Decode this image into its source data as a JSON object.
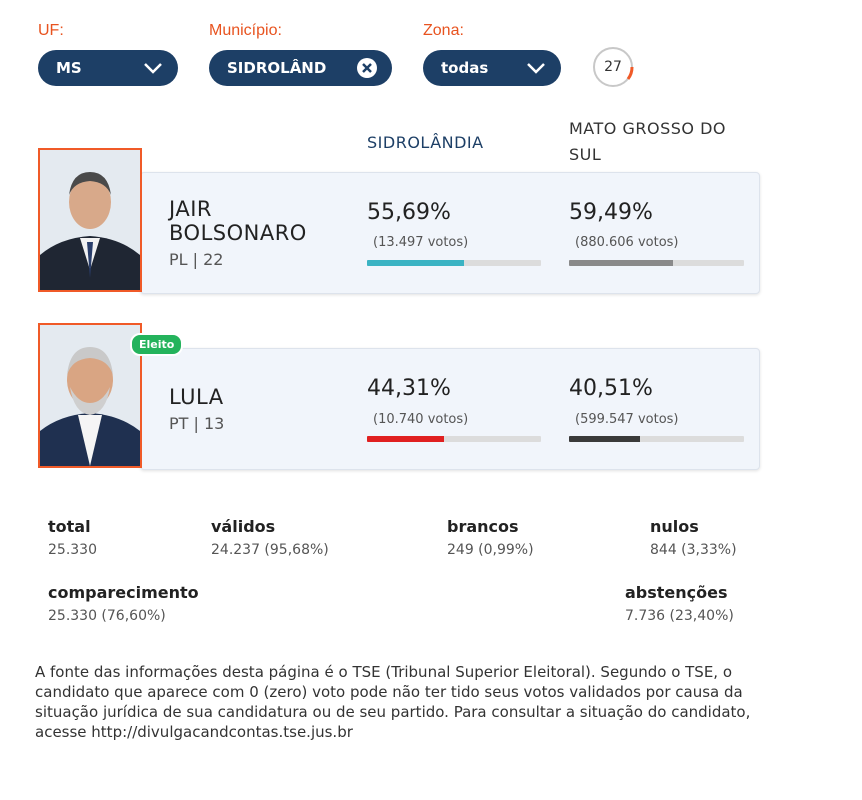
{
  "filters": {
    "uf": {
      "label": "UF:",
      "value": "MS"
    },
    "municipio": {
      "label": "Município:",
      "value": "SIDROLÂND"
    },
    "zona": {
      "label": "Zona:",
      "value": "todas"
    },
    "timer": "27"
  },
  "columns": {
    "local": "SIDROLÂNDIA",
    "state": "MATO GROSSO DO SUL"
  },
  "candidates": [
    {
      "name": "JAIR BOLSONARO",
      "party": "PL | 22",
      "local_pct": "55,69%",
      "local_votes": "(13.497 votos)",
      "local_share": 55.69,
      "state_pct": "59,49%",
      "state_votes": "(880.606 votos)",
      "state_share": 59.49,
      "local_color": "#3bb3c3",
      "state_color": "#8a8a8a"
    },
    {
      "name": "LULA",
      "party": "PT | 13",
      "badge": "Eleito",
      "local_pct": "44,31%",
      "local_votes": "(10.740 votos)",
      "local_share": 44.31,
      "state_pct": "40,51%",
      "state_votes": "(599.547 votos)",
      "state_share": 40.51,
      "local_color": "#e02020",
      "state_color": "#3a3a3a"
    }
  ],
  "stats": {
    "total": {
      "label": "total",
      "value": "25.330"
    },
    "validos": {
      "label": "válidos",
      "value": "24.237 (95,68%)"
    },
    "brancos": {
      "label": "brancos",
      "value": "249 (0,99%)"
    },
    "nulos": {
      "label": "nulos",
      "value": "844 (3,33%)"
    },
    "comparecimento": {
      "label": "comparecimento",
      "value": "25.330 (76,60%)"
    },
    "abstencoes": {
      "label": "abstenções",
      "value": "7.736 (23,40%)"
    }
  },
  "footer": "A fonte das informações desta página é o TSE (Tribunal Superior Eleitoral). Segundo o TSE, o candidato que aparece com 0 (zero) voto pode não ter tido seus votos validados por causa da situação jurídica de sua candidatura ou de seu partido. Para consultar a situação do candidato, acesse http://divulgacandcontas.tse.jus.br"
}
